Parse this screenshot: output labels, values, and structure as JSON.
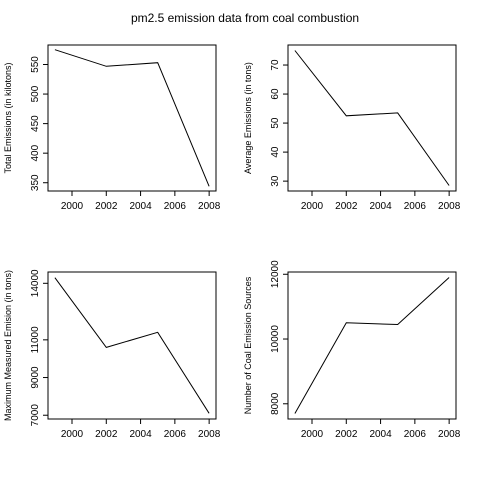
{
  "title": "pm2.5 emission data from coal combustion",
  "chart_data": [
    {
      "type": "line",
      "x": [
        1999,
        2002,
        2005,
        2008
      ],
      "values": [
        575,
        547,
        553,
        344
      ],
      "xlabel": "",
      "ylabel": "Total Emissions (in kilotons)",
      "xticks": [
        2000,
        2002,
        2004,
        2006,
        2008
      ],
      "yticks": [
        350,
        400,
        450,
        500,
        550
      ],
      "xlim": [
        1998.6,
        2008.4
      ],
      "ylim": [
        336,
        583
      ]
    },
    {
      "type": "line",
      "x": [
        1999,
        2002,
        2005,
        2008
      ],
      "values": [
        75,
        52.5,
        53.5,
        28.5
      ],
      "xlabel": "",
      "ylabel": "Average Emissions (in tons)",
      "xticks": [
        2000,
        2002,
        2004,
        2006,
        2008
      ],
      "yticks": [
        30,
        40,
        50,
        60,
        70
      ],
      "xlim": [
        1998.6,
        2008.4
      ],
      "ylim": [
        26.6,
        76.9
      ]
    },
    {
      "type": "line",
      "x": [
        1999,
        2002,
        2005,
        2008
      ],
      "values": [
        14300,
        10600,
        11400,
        7100
      ],
      "xlabel": "",
      "ylabel": "Maximum Measured Emision (in tons)",
      "xticks": [
        2000,
        2002,
        2004,
        2006,
        2008
      ],
      "yticks": [
        7000,
        9000,
        11000,
        14000
      ],
      "ylabel_ticks_note": "",
      "xlim": [
        1998.6,
        2008.4
      ],
      "ylim": [
        6800,
        14600
      ]
    },
    {
      "type": "line",
      "x": [
        1999,
        2002,
        2005,
        2008
      ],
      "values": [
        7700,
        10500,
        10450,
        11900
      ],
      "xlabel": "",
      "ylabel": "Number of Coal Emission Sources",
      "xticks": [
        2000,
        2002,
        2004,
        2006,
        2008
      ],
      "yticks": [
        8000,
        10000,
        12000
      ],
      "xlim": [
        1998.6,
        2008.4
      ],
      "ylim": [
        7530,
        12070
      ]
    }
  ]
}
